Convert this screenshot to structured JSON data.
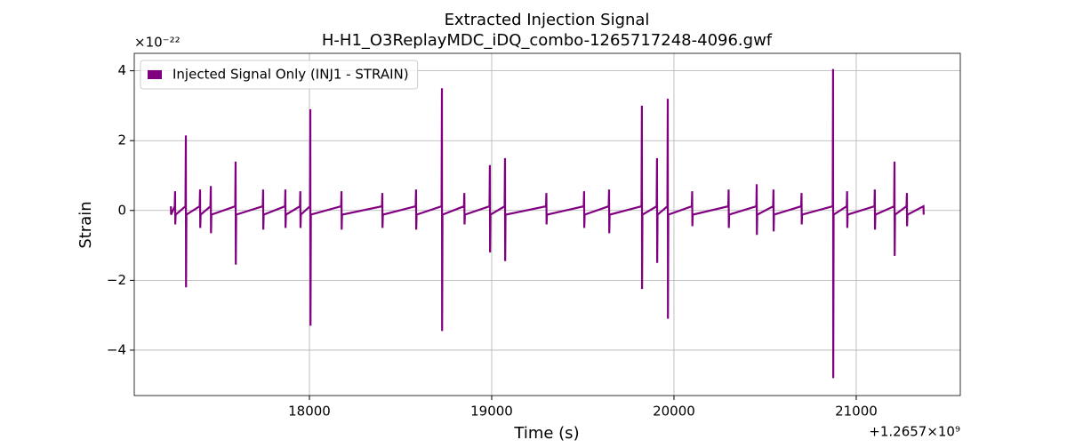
{
  "chart_data": {
    "type": "line",
    "title": "Extracted Injection Signal",
    "subtitle": "H-H1_O3ReplayMDC_iDQ_combo-1265717248-4096.gwf",
    "x_label": "Time (s)",
    "y_label": "Strain",
    "y_offset_label": "×10⁻²²",
    "x_offset_label": "+1.2657×10⁹",
    "xlim": [
      17039,
      21571
    ],
    "ylim": [
      -5.3,
      4.5
    ],
    "xticks": [
      18000,
      19000,
      20000,
      21000
    ],
    "yticks": [
      {
        "value": -4,
        "label": "−4"
      },
      {
        "value": -2,
        "label": "−2"
      },
      0,
      2,
      4
    ],
    "grid": true,
    "legend": "upper left",
    "series": [
      {
        "name": "Injected Signal Only (INJ1 - STRAIN)",
        "color": "#800080",
        "x": [
          17240,
          17241,
          17261,
          17263,
          17264,
          17266,
          17320,
          17322,
          17323,
          17325,
          17398,
          17400,
          17401,
          17403,
          17457,
          17459,
          17460,
          17462,
          17593,
          17595,
          17596,
          17598,
          17744,
          17746,
          17747,
          17749,
          17866,
          17868,
          17869,
          17871,
          17948,
          17950,
          17951,
          17953,
          18003,
          18005,
          18006,
          18008,
          18174,
          18176,
          18177,
          18179,
          18398,
          18400,
          18401,
          18403,
          18583,
          18585,
          18586,
          18588,
          18725,
          18727,
          18728,
          18730,
          18848,
          18850,
          18851,
          18853,
          18988,
          18990,
          18991,
          18993,
          19071,
          19073,
          19074,
          19076,
          19298,
          19300,
          19301,
          19303,
          19505,
          19507,
          19508,
          19510,
          19642,
          19644,
          19645,
          19647,
          19822,
          19824,
          19825,
          19827,
          19905,
          19907,
          19908,
          19910,
          19964,
          19966,
          19967,
          19969,
          20098,
          20100,
          20101,
          20103,
          20298,
          20300,
          20301,
          20303,
          20452,
          20454,
          20455,
          20457,
          20544,
          20546,
          20547,
          20549,
          20698,
          20700,
          20701,
          20703,
          20871,
          20873,
          20874,
          20876,
          20948,
          20950,
          20951,
          20953,
          21100,
          21102,
          21103,
          21105,
          21208,
          21210,
          21211,
          21213,
          21276,
          21278,
          21279,
          21281,
          21369,
          21370
        ],
        "values": [
          0.12,
          -0.12,
          0.12,
          0.55,
          -0.4,
          -0.12,
          0.12,
          2.15,
          -2.2,
          -0.12,
          0.12,
          0.6,
          -0.5,
          -0.12,
          0.12,
          0.7,
          -0.65,
          -0.12,
          0.12,
          1.4,
          -1.55,
          -0.12,
          0.12,
          0.6,
          -0.55,
          -0.12,
          0.12,
          0.6,
          -0.5,
          -0.12,
          0.12,
          0.55,
          -0.5,
          -0.12,
          0.12,
          2.9,
          -3.3,
          -0.12,
          0.12,
          0.55,
          -0.55,
          -0.12,
          0.12,
          0.5,
          -0.5,
          -0.12,
          0.12,
          0.6,
          -0.55,
          -0.12,
          0.12,
          3.5,
          -3.45,
          -0.12,
          0.12,
          0.5,
          -0.4,
          -0.12,
          0.12,
          1.3,
          -1.2,
          -0.12,
          0.12,
          1.5,
          -1.45,
          -0.12,
          0.12,
          0.5,
          -0.4,
          -0.12,
          0.12,
          0.55,
          -0.5,
          -0.12,
          0.12,
          0.6,
          -0.65,
          -0.12,
          0.12,
          3.0,
          -2.25,
          -0.12,
          0.12,
          1.5,
          -1.5,
          -0.12,
          0.12,
          3.2,
          -3.1,
          -0.12,
          0.12,
          0.55,
          -0.45,
          -0.12,
          0.12,
          0.6,
          -0.5,
          -0.12,
          0.12,
          0.75,
          -0.7,
          -0.12,
          0.12,
          0.6,
          -0.6,
          -0.12,
          0.12,
          0.5,
          -0.4,
          -0.12,
          0.12,
          4.05,
          -4.8,
          -0.12,
          0.12,
          0.55,
          -0.5,
          -0.12,
          0.12,
          0.6,
          -0.55,
          -0.12,
          0.12,
          1.4,
          -1.3,
          -0.12,
          0.12,
          0.5,
          -0.45,
          -0.12,
          0.12,
          -0.12
        ]
      }
    ]
  }
}
